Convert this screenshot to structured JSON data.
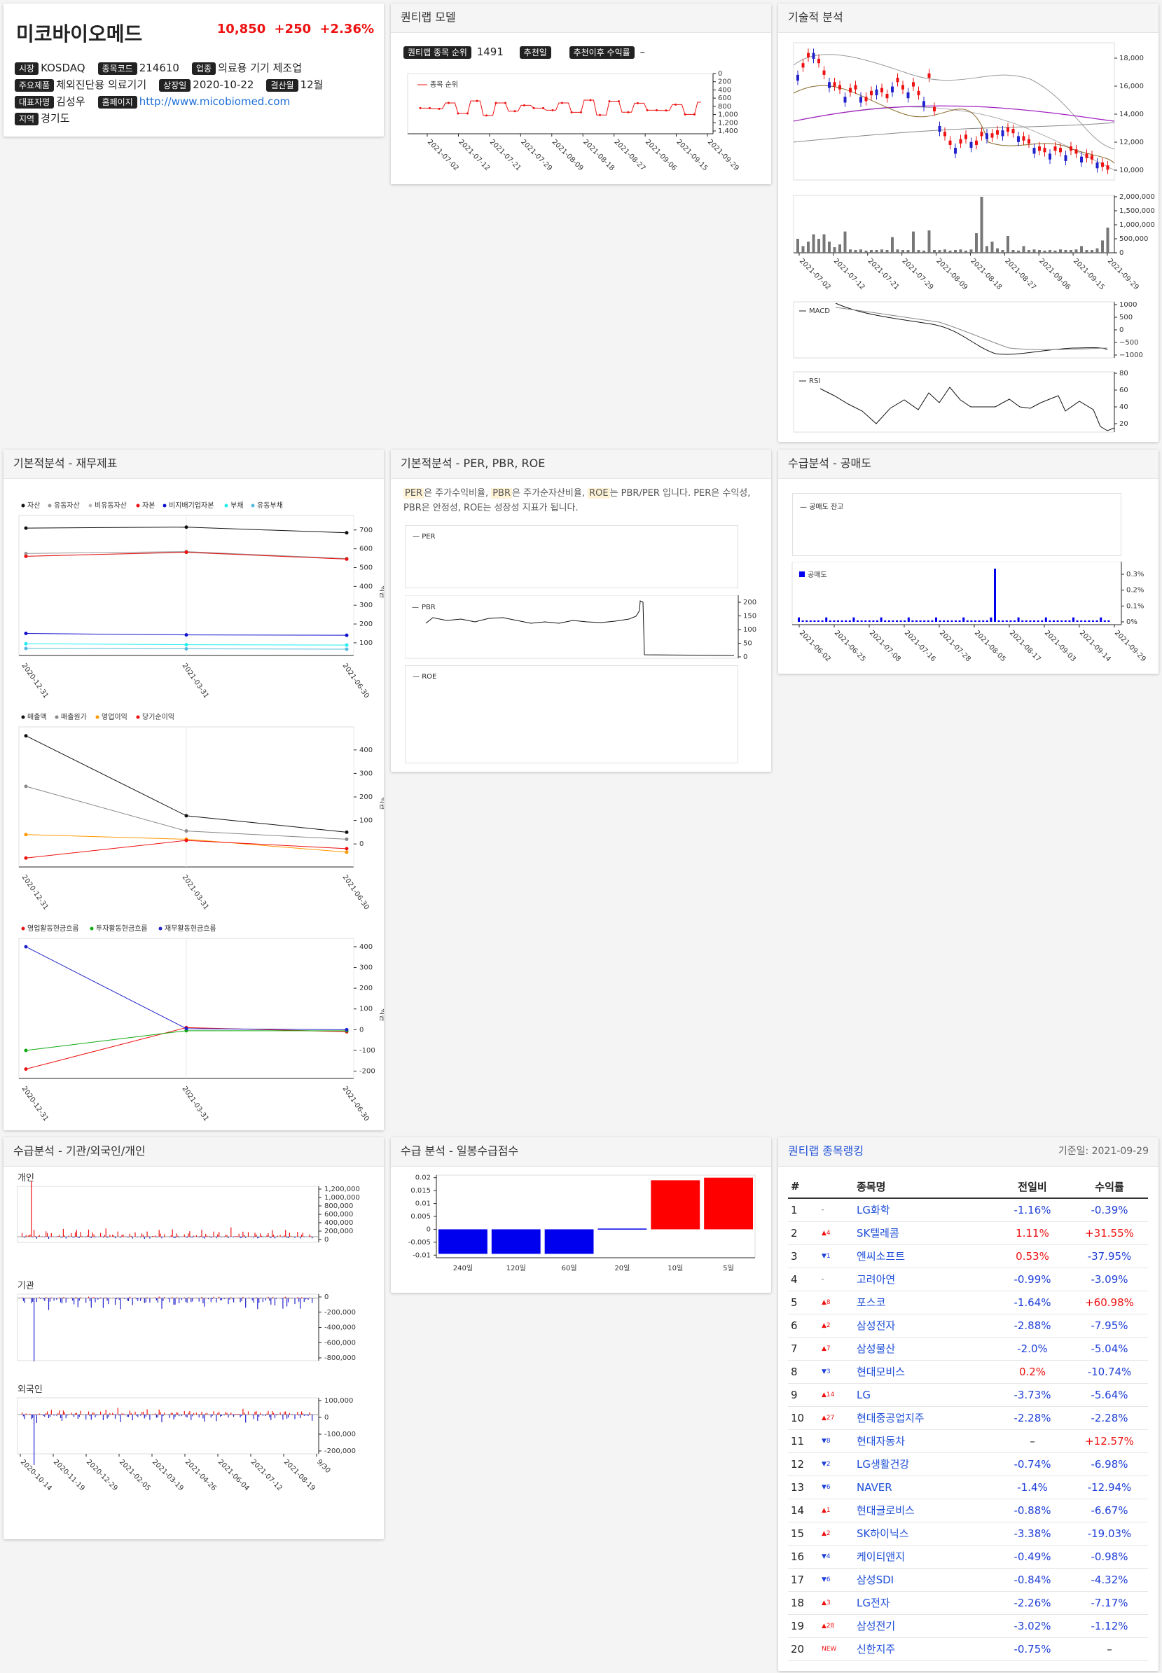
{
  "company": {
    "name": "미코바이오메드",
    "price": "10,850",
    "change": "+250",
    "change_pct": "+2.36%",
    "info": [
      [
        "시장",
        "KOSDAQ"
      ],
      [
        "종목코드",
        "214610"
      ],
      [
        "업종",
        "의료용 기기 제조업"
      ],
      [
        "주요제품",
        "체외진단용 의료기기"
      ],
      [
        "상장일",
        "2020-10-22"
      ],
      [
        "결산월",
        "12월"
      ],
      [
        "대표자명",
        "김성우"
      ],
      [
        "홈페이지",
        "http://www.micobiomed.com"
      ],
      [
        "지역",
        "경기도"
      ]
    ]
  },
  "quant": {
    "title": "퀀티랩 모델",
    "rank_label": "퀀티랩 종목 순위",
    "rank": "1491",
    "rec_label": "추천일",
    "rec_ret_label": "추천이후 수익률",
    "rec_ret": "–",
    "legend": "종목 순위",
    "yticks": [
      "0",
      "200",
      "400",
      "600",
      "800",
      "1,000",
      "1,200",
      "1,400"
    ],
    "dates": [
      "2021-07-02",
      "2021-07-12",
      "2021-07-21",
      "2021-07-29",
      "2021-08-09",
      "2021-08-18",
      "2021-08-27",
      "2021-09-06",
      "2021-09-15",
      "2021-09-29"
    ]
  },
  "tech": {
    "title": "기술적 분석",
    "price_ticks": [
      "18,000",
      "16,000",
      "14,000",
      "12,000",
      "10,000"
    ],
    "vol_ticks": [
      "2,000,000",
      "1,500,000",
      "1,000,000",
      "500,000",
      "0"
    ],
    "dates": [
      "2021-07-02",
      "2021-07-12",
      "2021-07-21",
      "2021-07-29",
      "2021-08-09",
      "2021-08-18",
      "2021-08-27",
      "2021-09-06",
      "2021-09-15",
      "2021-09-29"
    ],
    "macd_label": "MACD",
    "macd_ticks": [
      "1000",
      "500",
      "0",
      "−500",
      "−1000"
    ],
    "rsi_label": "RSI",
    "rsi_ticks": [
      "80",
      "60",
      "40",
      "20"
    ]
  },
  "fin": {
    "title": "기본적분석 - 재무제표",
    "unit": "억원",
    "dates": [
      "2020-12-31",
      "2021-03-31",
      "2021-06-30"
    ],
    "bs_legend": [
      "자산",
      "유동자산",
      "비유동자산",
      "자본",
      "비지배기업자본",
      "부채",
      "유동부채"
    ],
    "bs_ticks": [
      "700",
      "600",
      "500",
      "400",
      "300",
      "200",
      "100"
    ],
    "is_legend": [
      "매출액",
      "매출원가",
      "영업이익",
      "당기순이익"
    ],
    "is_ticks": [
      "400",
      "300",
      "200",
      "100",
      "0"
    ],
    "cf_legend": [
      "영업활동현금흐름",
      "투자활동현금흐름",
      "재무활동현금흐름"
    ],
    "cf_ticks": [
      "400",
      "300",
      "200",
      "100",
      "0",
      "-100",
      "-200"
    ]
  },
  "per": {
    "title": "기본적분석 - PER, PBR, ROE",
    "t1": "PER",
    "t2": "은 주가수익비율, ",
    "t3": "PBR",
    "t4": "은 주가순자산비율, ",
    "t5": "ROE",
    "t6": "는 PBR/PER 입니다. PER은 수익성, PBR은 안정성, ROE는 성장성 지표가 됩니다.",
    "per_label": "PER",
    "pbr_label": "PBR",
    "roe_label": "ROE",
    "pbr_ticks": [
      "200",
      "150",
      "100",
      "50",
      "0"
    ]
  },
  "short": {
    "title": "수급분석 - 공매도",
    "bal_label": "공매도 잔고",
    "vol_label": "공매도",
    "ticks": [
      "0.3%",
      "0.2%",
      "0.1%",
      "0%"
    ],
    "dates": [
      "2021-06-02",
      "2021-06-25",
      "2021-07-08",
      "2021-07-16",
      "2021-07-28",
      "2021-08-05",
      "2021-08-17",
      "2021-09-03",
      "2021-09-14",
      "2021-09-29"
    ]
  },
  "supply": {
    "title": "수급분석 - 기관/외국인/개인",
    "ind_label": "개인",
    "ind_ticks": [
      "1,200,000",
      "1,000,000",
      "800,000",
      "600,000",
      "400,000",
      "200,000",
      "0"
    ],
    "inst_label": "기관",
    "inst_ticks": [
      "0",
      "-200,000",
      "-400,000",
      "-600,000",
      "-800,000"
    ],
    "for_label": "외국인",
    "for_ticks": [
      "100,000",
      "0",
      "-100,000",
      "-200,000"
    ],
    "dates": [
      "2020-10-14",
      "2020-11-19",
      "2020-12-29",
      "2021-02-05",
      "2021-03-19",
      "2021-04-26",
      "2021-06-04",
      "2021-07-12",
      "2021-08-19",
      "9/30"
    ]
  },
  "score": {
    "title": "수급 분석 - 일봉수급점수",
    "ticks": [
      "0.02",
      "0.015",
      "0.01",
      "0.005",
      "0",
      "-0.005",
      "-0.01"
    ],
    "cats": [
      "240일",
      "120일",
      "60일",
      "20일",
      "10일",
      "5일"
    ],
    "values": [
      -0.0095,
      -0.0095,
      -0.0095,
      0.0003,
      0.019,
      0.02
    ]
  },
  "rank": {
    "title": "퀀티랩 종목랭킹",
    "date": "기준일: 2021-09-29",
    "head": [
      "#",
      "종목명",
      "전일비",
      "수익률"
    ],
    "rows": [
      [
        "1",
        "-",
        "LG화학",
        "-1.16%",
        "-0.39%"
      ],
      [
        "2",
        "▲4",
        "SK텔레콤",
        "1.11%",
        "+31.55%"
      ],
      [
        "3",
        "▼1",
        "엔씨소프트",
        "0.53%",
        "-37.95%"
      ],
      [
        "4",
        "-",
        "고려아연",
        "-0.99%",
        "-3.09%"
      ],
      [
        "5",
        "▲8",
        "포스코",
        "-1.64%",
        "+60.98%"
      ],
      [
        "6",
        "▲2",
        "삼성전자",
        "-2.88%",
        "-7.95%"
      ],
      [
        "7",
        "▲7",
        "삼성물산",
        "-2.0%",
        "-5.04%"
      ],
      [
        "8",
        "▼3",
        "현대모비스",
        "0.2%",
        "-10.74%"
      ],
      [
        "9",
        "▲14",
        "LG",
        "-3.73%",
        "-5.64%"
      ],
      [
        "10",
        "▲27",
        "현대중공업지주",
        "-2.28%",
        "-2.28%"
      ],
      [
        "11",
        "▼8",
        "현대자동차",
        "–",
        "+12.57%"
      ],
      [
        "12",
        "▼2",
        "LG생활건강",
        "-0.74%",
        "-6.98%"
      ],
      [
        "13",
        "▼6",
        "NAVER",
        "-1.4%",
        "-12.94%"
      ],
      [
        "14",
        "▲1",
        "현대글로비스",
        "-0.88%",
        "-6.67%"
      ],
      [
        "15",
        "▲2",
        "SK하이닉스",
        "-3.38%",
        "-19.03%"
      ],
      [
        "16",
        "▼4",
        "케이티앤지",
        "-0.49%",
        "-0.98%"
      ],
      [
        "17",
        "▼6",
        "삼성SDI",
        "-0.84%",
        "-4.32%"
      ],
      [
        "18",
        "▲3",
        "LG전자",
        "-2.26%",
        "-7.17%"
      ],
      [
        "19",
        "▲28",
        "삼성전기",
        "-3.02%",
        "-1.12%"
      ],
      [
        "20",
        "NEW",
        "신한지주",
        "-0.75%",
        "–"
      ]
    ]
  }
}
